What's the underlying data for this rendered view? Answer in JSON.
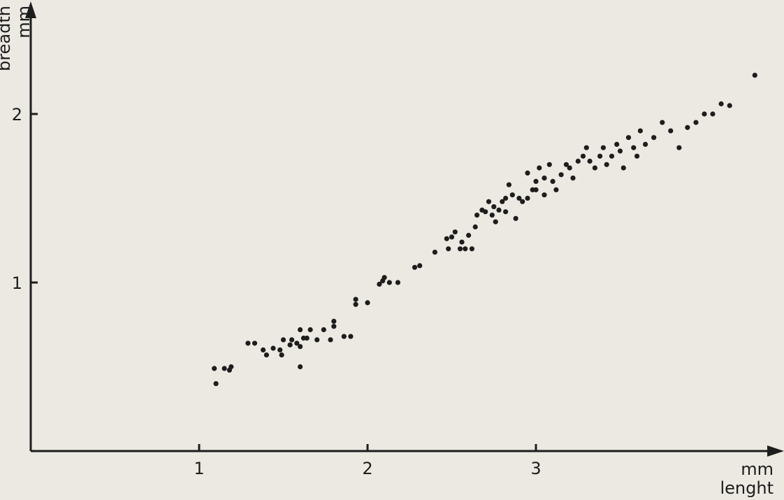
{
  "chart_data": {
    "type": "scatter",
    "xlabel": "lenght",
    "xunit": "mm",
    "ylabel": "breadth",
    "yunit": "mm",
    "xlim": [
      0,
      4.25
    ],
    "ylim": [
      0,
      2.4
    ],
    "xticks": [
      1,
      2,
      3
    ],
    "yticks": [
      1,
      2
    ],
    "grid": false,
    "legend": "none",
    "marker_color": "#1d1d1d",
    "axis_color": "#1d1d1d",
    "background": "#ece9e2",
    "points": [
      [
        1.09,
        0.49
      ],
      [
        1.1,
        0.4
      ],
      [
        1.15,
        0.49
      ],
      [
        1.18,
        0.48
      ],
      [
        1.19,
        0.5
      ],
      [
        1.29,
        0.64
      ],
      [
        1.33,
        0.64
      ],
      [
        1.38,
        0.6
      ],
      [
        1.4,
        0.57
      ],
      [
        1.44,
        0.61
      ],
      [
        1.48,
        0.6
      ],
      [
        1.49,
        0.57
      ],
      [
        1.5,
        0.66
      ],
      [
        1.54,
        0.63
      ],
      [
        1.55,
        0.66
      ],
      [
        1.58,
        0.64
      ],
      [
        1.6,
        0.62
      ],
      [
        1.6,
        0.5
      ],
      [
        1.6,
        0.72
      ],
      [
        1.62,
        0.67
      ],
      [
        1.64,
        0.67
      ],
      [
        1.66,
        0.72
      ],
      [
        1.7,
        0.66
      ],
      [
        1.74,
        0.72
      ],
      [
        1.78,
        0.66
      ],
      [
        1.8,
        0.74
      ],
      [
        1.8,
        0.77
      ],
      [
        1.86,
        0.68
      ],
      [
        1.9,
        0.68
      ],
      [
        1.93,
        0.87
      ],
      [
        1.93,
        0.9
      ],
      [
        2.0,
        0.88
      ],
      [
        2.07,
        0.99
      ],
      [
        2.09,
        1.01
      ],
      [
        2.1,
        1.03
      ],
      [
        2.13,
        1.0
      ],
      [
        2.18,
        1.0
      ],
      [
        2.28,
        1.09
      ],
      [
        2.31,
        1.1
      ],
      [
        2.4,
        1.18
      ],
      [
        2.47,
        1.26
      ],
      [
        2.48,
        1.2
      ],
      [
        2.5,
        1.27
      ],
      [
        2.52,
        1.3
      ],
      [
        2.55,
        1.2
      ],
      [
        2.56,
        1.24
      ],
      [
        2.58,
        1.2
      ],
      [
        2.6,
        1.28
      ],
      [
        2.62,
        1.2
      ],
      [
        2.64,
        1.33
      ],
      [
        2.65,
        1.4
      ],
      [
        2.68,
        1.43
      ],
      [
        2.7,
        1.42
      ],
      [
        2.72,
        1.48
      ],
      [
        2.75,
        1.45
      ],
      [
        2.74,
        1.4
      ],
      [
        2.76,
        1.36
      ],
      [
        2.78,
        1.43
      ],
      [
        2.8,
        1.48
      ],
      [
        2.82,
        1.5
      ],
      [
        2.82,
        1.42
      ],
      [
        2.84,
        1.58
      ],
      [
        2.86,
        1.52
      ],
      [
        2.88,
        1.38
      ],
      [
        2.9,
        1.5
      ],
      [
        2.92,
        1.48
      ],
      [
        2.95,
        1.5
      ],
      [
        2.95,
        1.65
      ],
      [
        2.98,
        1.55
      ],
      [
        3.0,
        1.6
      ],
      [
        3.0,
        1.55
      ],
      [
        3.02,
        1.68
      ],
      [
        3.05,
        1.62
      ],
      [
        3.05,
        1.52
      ],
      [
        3.08,
        1.7
      ],
      [
        3.1,
        1.6
      ],
      [
        3.12,
        1.55
      ],
      [
        3.15,
        1.64
      ],
      [
        3.18,
        1.7
      ],
      [
        3.2,
        1.68
      ],
      [
        3.22,
        1.62
      ],
      [
        3.25,
        1.72
      ],
      [
        3.28,
        1.75
      ],
      [
        3.3,
        1.8
      ],
      [
        3.32,
        1.72
      ],
      [
        3.35,
        1.68
      ],
      [
        3.38,
        1.75
      ],
      [
        3.4,
        1.8
      ],
      [
        3.42,
        1.7
      ],
      [
        3.45,
        1.75
      ],
      [
        3.48,
        1.82
      ],
      [
        3.5,
        1.78
      ],
      [
        3.52,
        1.68
      ],
      [
        3.55,
        1.86
      ],
      [
        3.58,
        1.8
      ],
      [
        3.6,
        1.75
      ],
      [
        3.62,
        1.9
      ],
      [
        3.65,
        1.82
      ],
      [
        3.7,
        1.86
      ],
      [
        3.75,
        1.95
      ],
      [
        3.8,
        1.9
      ],
      [
        3.85,
        1.8
      ],
      [
        3.9,
        1.92
      ],
      [
        3.95,
        1.95
      ],
      [
        4.0,
        2.0
      ],
      [
        4.05,
        2.0
      ],
      [
        4.1,
        2.06
      ],
      [
        4.15,
        2.05
      ],
      [
        4.3,
        2.23
      ]
    ]
  }
}
